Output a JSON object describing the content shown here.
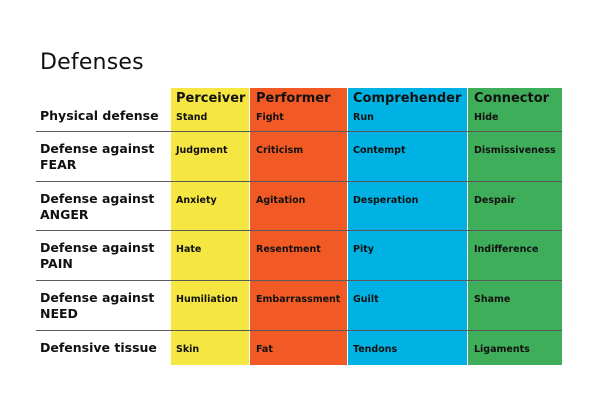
{
  "title": "Defenses",
  "columns": [
    {
      "name": "Perceiver",
      "physical": "Stand",
      "color": "#f5e642"
    },
    {
      "name": "Performer",
      "physical": "Fight",
      "color": "#f15a24"
    },
    {
      "name": "Comprehender",
      "physical": "Run",
      "color": "#00b2e3"
    },
    {
      "name": "Connector",
      "physical": "Hide",
      "color": "#3fae5a"
    }
  ],
  "rows": [
    {
      "label_line1": "Physical defense",
      "label_line2": "",
      "values": [
        "Stand",
        "Fight",
        "Run",
        "Hide"
      ]
    },
    {
      "label_line1": "Defense against",
      "label_line2": "FEAR",
      "values": [
        "Judgment",
        "Criticism",
        "Contempt",
        "Dismissiveness"
      ]
    },
    {
      "label_line1": "Defense against",
      "label_line2": "ANGER",
      "values": [
        "Anxiety",
        "Agitation",
        "Desperation",
        "Despair"
      ]
    },
    {
      "label_line1": "Defense against",
      "label_line2": "PAIN",
      "values": [
        "Hate",
        "Resentment",
        "Pity",
        "Indifference"
      ]
    },
    {
      "label_line1": "Defense against",
      "label_line2": "NEED",
      "values": [
        "Humiliation",
        "Embarrassment",
        "Guilt",
        "Shame"
      ]
    },
    {
      "label_line1": "Defensive tissue",
      "label_line2": "",
      "values": [
        "Skin",
        "Fat",
        "Tendons",
        "Ligaments"
      ]
    }
  ]
}
